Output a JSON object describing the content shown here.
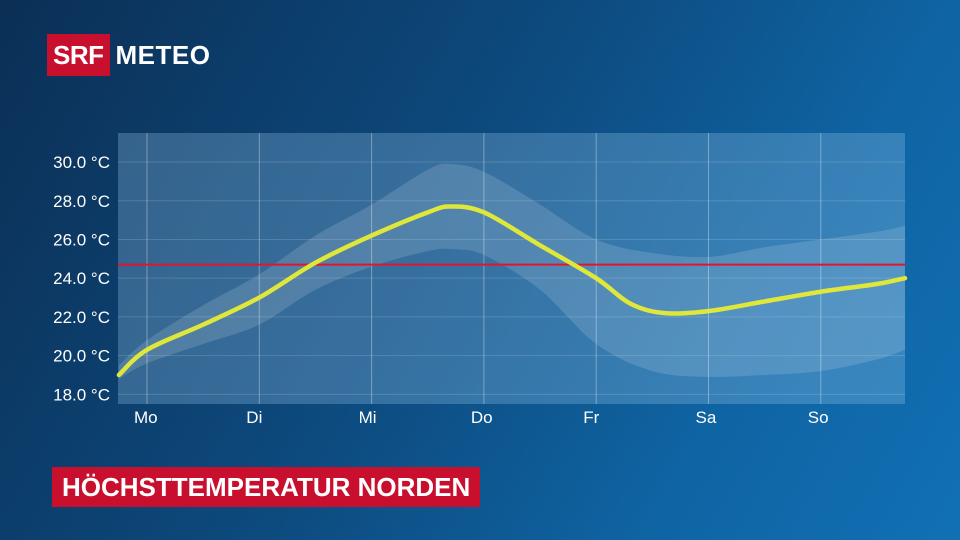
{
  "brand": {
    "srf": "SRF",
    "meteo": "METEO"
  },
  "chart_data": {
    "type": "line",
    "title": "HÖCHSTTEMPERATUR NORDEN",
    "categories": [
      "Mo",
      "Di",
      "Mi",
      "Do",
      "Fr",
      "Sa",
      "So"
    ],
    "ylim": [
      17.5,
      31.5
    ],
    "yticks": [
      "18.0 °C",
      "20.0 °C",
      "22.0 °C",
      "24.0 °C",
      "26.0 °C",
      "28.0 °C",
      "30.0 °C"
    ],
    "ytick_values": [
      18,
      20,
      22,
      24,
      26,
      28,
      30
    ],
    "reference_line": {
      "value": 24.7,
      "color": "#e4142d"
    },
    "series": [
      {
        "color": "#dfe73a",
        "x": [
          -0.25,
          0,
          0.5,
          1,
          1.5,
          2,
          2.5,
          2.7,
          3,
          3.5,
          4,
          4.3,
          4.6,
          5,
          5.5,
          6,
          6.5,
          6.75
        ],
        "y": [
          19.0,
          20.3,
          21.6,
          23.0,
          24.8,
          26.2,
          27.4,
          27.7,
          27.4,
          25.7,
          24.0,
          22.7,
          22.2,
          22.3,
          22.8,
          23.3,
          23.7,
          24.0
        ]
      }
    ],
    "band": {
      "x": [
        -0.25,
        0,
        0.5,
        1,
        1.5,
        2,
        2.5,
        2.7,
        3,
        3.5,
        4,
        4.5,
        5,
        5.5,
        6,
        6.5,
        6.75
      ],
      "upper": [
        19.5,
        20.8,
        22.6,
        24.2,
        26.2,
        27.8,
        29.6,
        29.9,
        29.5,
        27.8,
        26.0,
        25.3,
        25.1,
        25.6,
        26.0,
        26.4,
        26.7
      ],
      "lower": [
        18.8,
        19.6,
        20.6,
        21.6,
        23.4,
        24.6,
        25.4,
        25.5,
        25.2,
        23.4,
        20.6,
        19.2,
        18.9,
        19.0,
        19.2,
        19.8,
        20.3
      ]
    },
    "grid": true
  }
}
